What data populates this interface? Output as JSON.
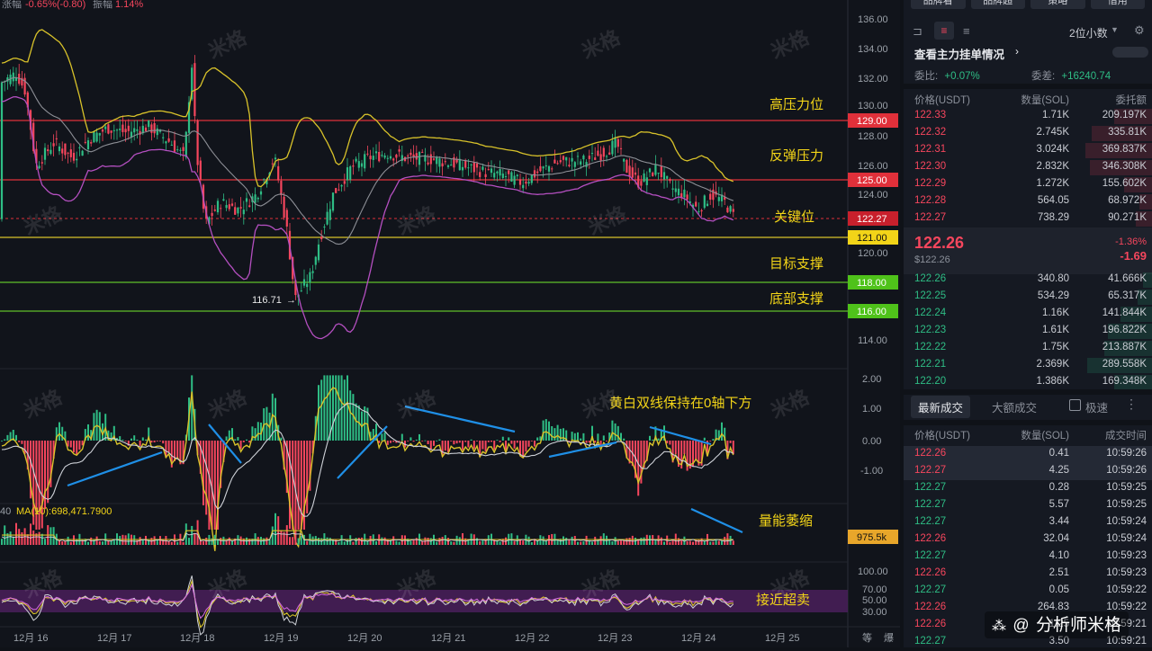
{
  "header": {
    "change_label": "涨幅",
    "change_value": "-0.65%(-0.80)",
    "amp_label": "振幅",
    "amp_value": "1.14%"
  },
  "price_axis": [
    "136.00",
    "134.00",
    "132.00",
    "130.00",
    "128.00",
    "126.00",
    "124.00",
    "120.00",
    "114.00"
  ],
  "price_tags": {
    "p129": "129.00",
    "p125": "125.00",
    "current": "122.27",
    "p121": "121.00",
    "p118": "118.00",
    "p116": "116.00"
  },
  "annotations": {
    "high_pressure": "高压力位",
    "rebound_pressure": "反弹压力",
    "key_level": "关键位",
    "target_support": "目标支撑",
    "bottom_support": "底部支撑",
    "low_marker": "116.71",
    "macd_note": "黄白双线保持在0轴下方",
    "volume_note": "量能萎缩",
    "rsi_note": "接近超卖"
  },
  "macd_axis": [
    "2.00",
    "1.00",
    "0.00",
    "-1.00"
  ],
  "volume": {
    "ma_label": "MA(10):698,471.7900",
    "left_number": "40",
    "tag": "975.5k"
  },
  "rsi_axis": [
    "100.00",
    "70.00",
    "50.00",
    "30.00"
  ],
  "dates": [
    "12月 16",
    "12月 17",
    "12月 18",
    "12月 19",
    "12月 20",
    "12月 21",
    "12月 22",
    "12月 23",
    "12月 24",
    "12月 25"
  ],
  "corner_labels": [
    "等",
    "爆"
  ],
  "watermark": "米格",
  "footer_brand": "分析师米格",
  "panel": {
    "top_buttons": [
      "品牌看",
      "品牌超",
      "策略",
      "借用"
    ],
    "decimals": "2位小数",
    "orderbook_title": "查看主力挂单情况",
    "ratio_label": "委比:",
    "ratio_value": "+0.07%",
    "diff_label": "委差:",
    "diff_value": "+16240.74",
    "headers": [
      "价格(USDT)",
      "数量(SOL)",
      "委托额"
    ],
    "asks": [
      [
        "122.33",
        "1.71K",
        "209.197K"
      ],
      [
        "122.32",
        "2.745K",
        "335.81K"
      ],
      [
        "122.31",
        "3.024K",
        "369.837K"
      ],
      [
        "122.30",
        "2.832K",
        "346.308K"
      ],
      [
        "122.29",
        "1.272K",
        "155.602K"
      ],
      [
        "122.28",
        "564.05",
        "68.972K"
      ],
      [
        "122.27",
        "738.29",
        "90.271K"
      ]
    ],
    "last_price": "122.26",
    "last_price_usd": "$122.26",
    "last_change_pct": "-1.36%",
    "last_change_abs": "-1.69",
    "bids": [
      [
        "122.26",
        "340.80",
        "41.666K"
      ],
      [
        "122.25",
        "534.29",
        "65.317K"
      ],
      [
        "122.24",
        "1.16K",
        "141.844K"
      ],
      [
        "122.23",
        "1.61K",
        "196.822K"
      ],
      [
        "122.22",
        "1.75K",
        "213.887K"
      ],
      [
        "122.21",
        "2.369K",
        "289.558K"
      ],
      [
        "122.20",
        "1.386K",
        "169.348K"
      ]
    ],
    "trades_tab_latest": "最新成交",
    "trades_tab_big": "大额成交",
    "fast_label": "极速",
    "trade_headers": [
      "价格(USDT)",
      "数量(SOL)",
      "成交时间"
    ],
    "trades": [
      [
        "122.26",
        "0.41",
        "10:59:26",
        "sell"
      ],
      [
        "122.27",
        "4.25",
        "10:59:26",
        "sell"
      ],
      [
        "122.27",
        "0.28",
        "10:59:25",
        "buy"
      ],
      [
        "122.27",
        "5.57",
        "10:59:25",
        "buy"
      ],
      [
        "122.27",
        "3.44",
        "10:59:24",
        "buy"
      ],
      [
        "122.26",
        "32.04",
        "10:59:24",
        "sell"
      ],
      [
        "122.27",
        "4.10",
        "10:59:23",
        "buy"
      ],
      [
        "122.26",
        "2.51",
        "10:59:23",
        "sell"
      ],
      [
        "122.27",
        "0.05",
        "10:59:22",
        "buy"
      ],
      [
        "122.26",
        "264.83",
        "10:59:22",
        "sell"
      ],
      [
        "122.26",
        "1.25",
        "10:59:21",
        "sell"
      ],
      [
        "122.27",
        "3.50",
        "10:59:21",
        "buy"
      ]
    ]
  },
  "colors": {
    "up": "#2ebd85",
    "down": "#f6465d",
    "yellow": "#d8c22a",
    "purple": "#b44fc0",
    "red_line": "#e0303a",
    "green_line": "#5fbf2a"
  }
}
